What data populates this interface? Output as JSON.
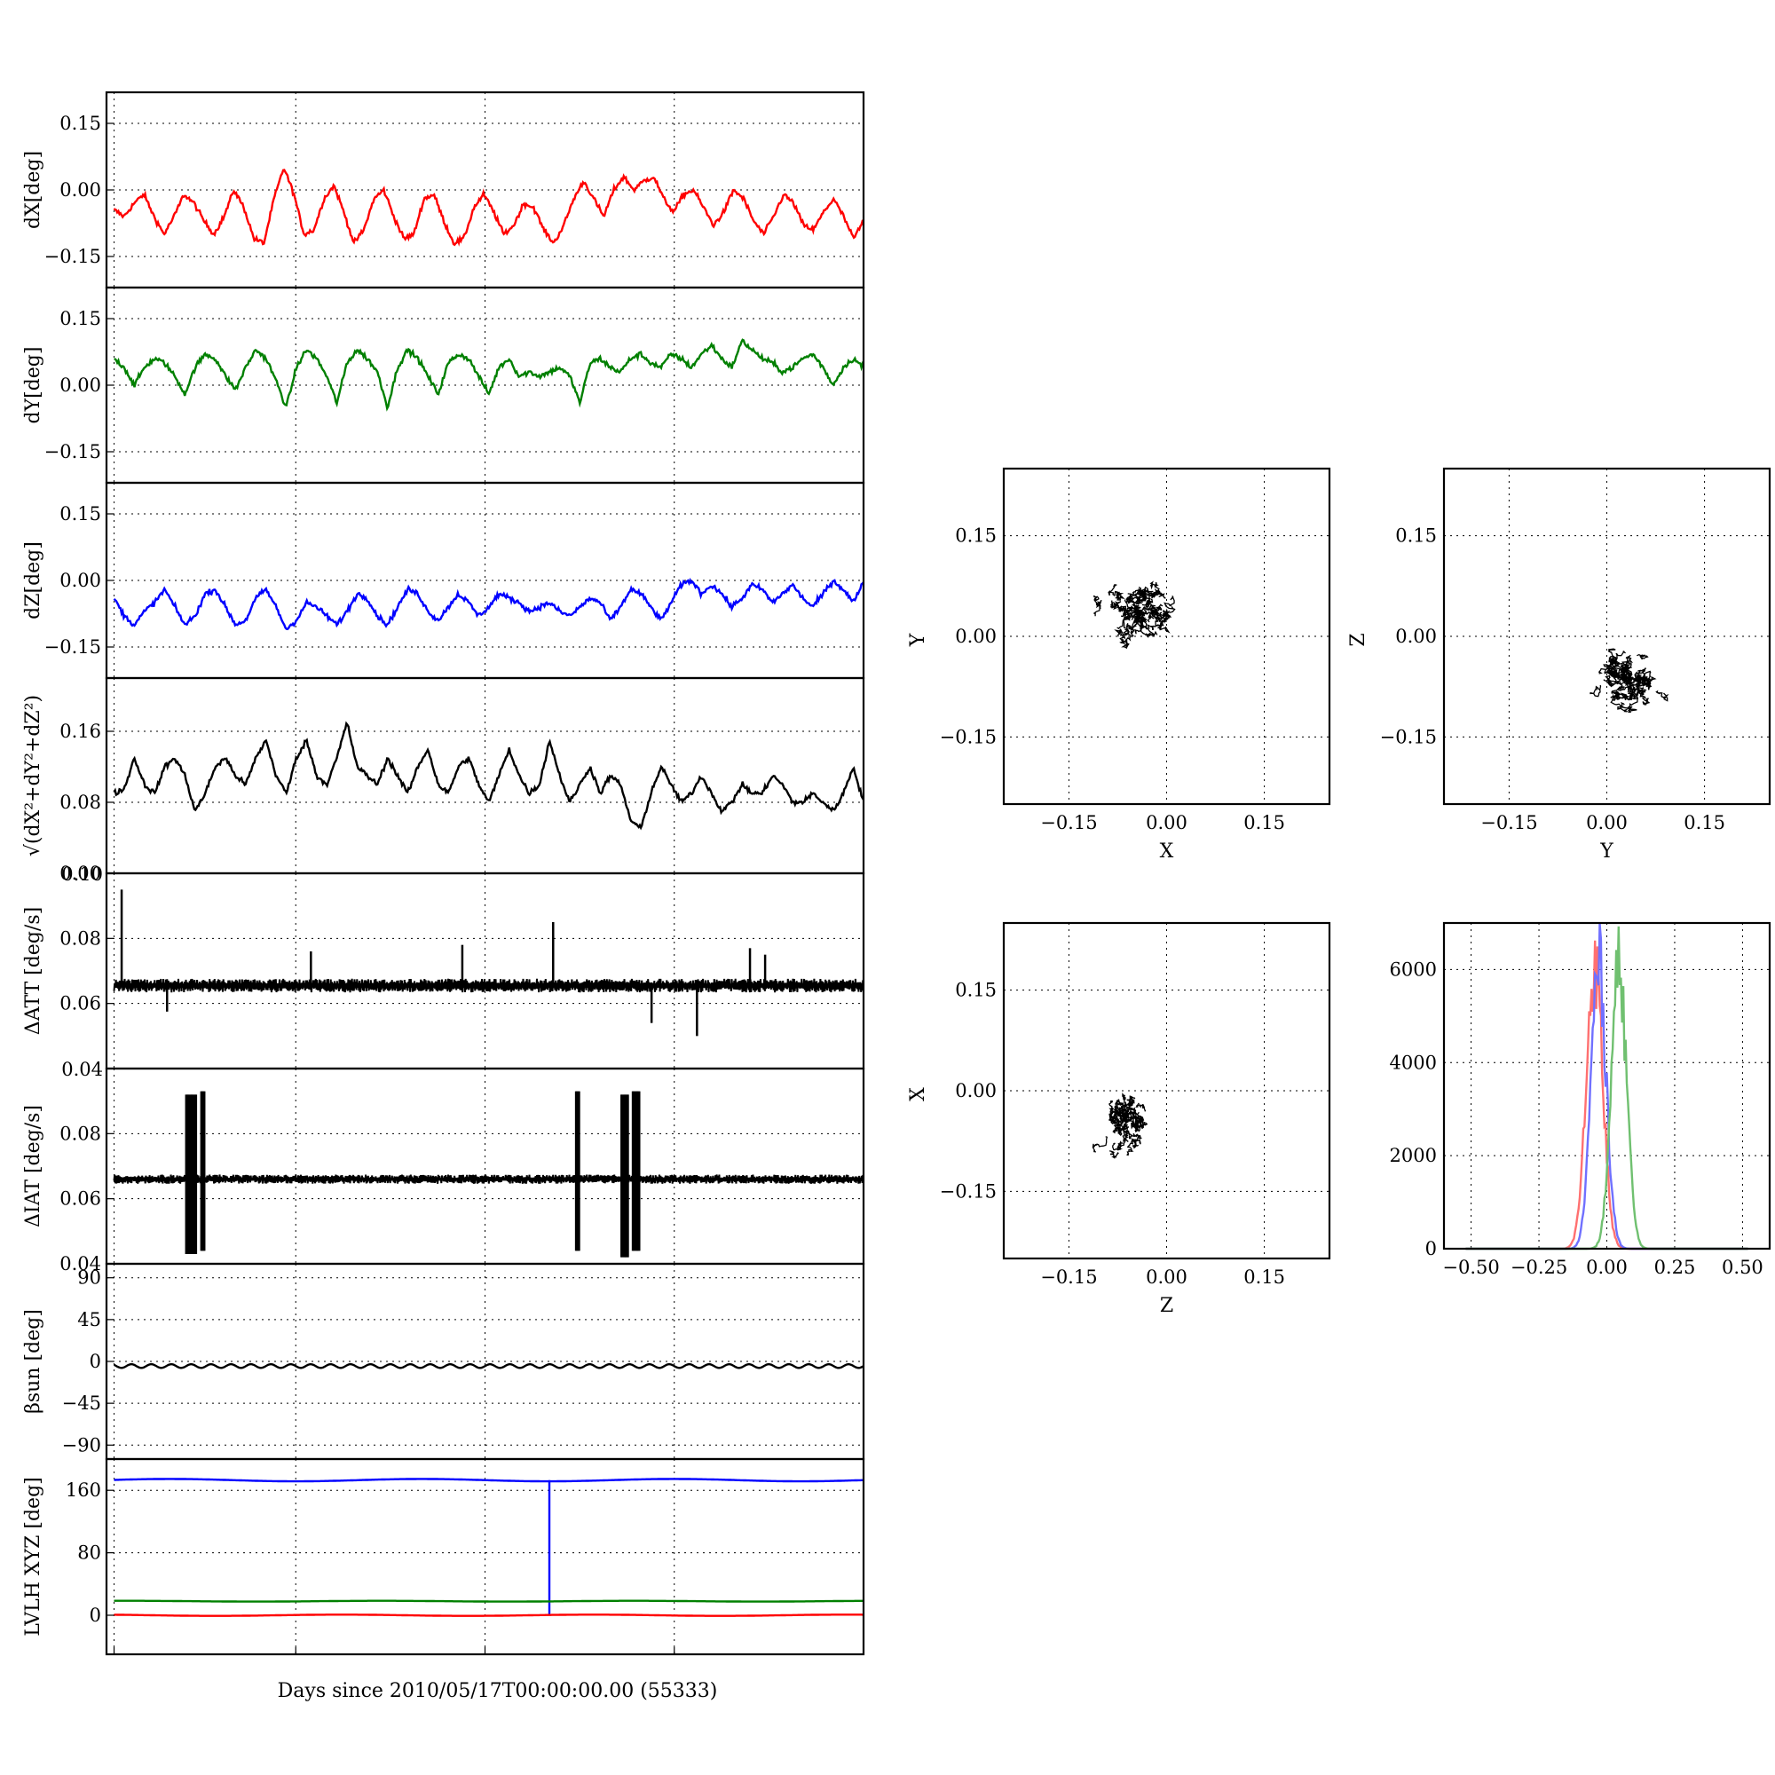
{
  "chart_data": [
    {
      "id": "dx",
      "type": "line",
      "ylabel": "dX[deg]",
      "ylim": [
        -0.22,
        0.22
      ],
      "yticks": [
        0.15,
        0.0,
        -0.15
      ],
      "ytick_labels": [
        "0.15",
        "0.00",
        "−0.15"
      ],
      "series": [
        {
          "color": "#ff0000",
          "values": [
            -0.045,
            -0.06,
            -0.03,
            -0.01,
            -0.06,
            -0.1,
            -0.06,
            -0.01,
            -0.03,
            -0.07,
            -0.1,
            -0.06,
            0.0,
            -0.04,
            -0.11,
            -0.12,
            -0.02,
            0.05,
            -0.01,
            -0.1,
            -0.09,
            -0.02,
            0.01,
            -0.05,
            -0.12,
            -0.09,
            -0.02,
            0.0,
            -0.06,
            -0.11,
            -0.1,
            -0.02,
            -0.01,
            -0.07,
            -0.12,
            -0.11,
            -0.04,
            -0.01,
            -0.05,
            -0.1,
            -0.08,
            -0.03,
            -0.04,
            -0.09,
            -0.12,
            -0.08,
            -0.02,
            0.02,
            -0.02,
            -0.06,
            0.0,
            0.03,
            0.0,
            0.02,
            0.03,
            -0.02,
            -0.05,
            -0.01,
            0.0,
            -0.04,
            -0.08,
            -0.05,
            0.0,
            -0.02,
            -0.07,
            -0.1,
            -0.06,
            -0.01,
            -0.03,
            -0.08,
            -0.09,
            -0.05,
            -0.02,
            -0.06,
            -0.11,
            -0.07
          ]
        }
      ]
    },
    {
      "id": "dy",
      "type": "line",
      "ylabel": "dY[deg]",
      "ylim": [
        -0.22,
        0.22
      ],
      "yticks": [
        0.15,
        0.0,
        -0.15
      ],
      "ytick_labels": [
        "0.15",
        "0.00",
        "−0.15"
      ],
      "series": [
        {
          "color": "#008000",
          "values": [
            0.06,
            0.04,
            0.0,
            0.04,
            0.06,
            0.05,
            0.02,
            -0.02,
            0.04,
            0.07,
            0.06,
            0.02,
            -0.01,
            0.04,
            0.08,
            0.06,
            0.01,
            -0.05,
            0.04,
            0.08,
            0.06,
            0.02,
            -0.04,
            0.05,
            0.08,
            0.06,
            0.03,
            -0.05,
            0.04,
            0.08,
            0.06,
            0.02,
            -0.02,
            0.05,
            0.07,
            0.06,
            0.02,
            -0.02,
            0.04,
            0.06,
            0.02,
            0.03,
            0.02,
            0.03,
            0.04,
            0.02,
            -0.04,
            0.05,
            0.06,
            0.04,
            0.03,
            0.06,
            0.07,
            0.05,
            0.04,
            0.07,
            0.06,
            0.04,
            0.07,
            0.09,
            0.06,
            0.04,
            0.1,
            0.08,
            0.06,
            0.05,
            0.03,
            0.04,
            0.06,
            0.07,
            0.04,
            0.0,
            0.04,
            0.06,
            0.04
          ]
        }
      ]
    },
    {
      "id": "dz",
      "type": "line",
      "ylabel": "dZ[deg]",
      "ylim": [
        -0.22,
        0.22
      ],
      "yticks": [
        0.15,
        0.0,
        -0.15
      ],
      "ytick_labels": [
        "0.15",
        "0.00",
        "−0.15"
      ],
      "series": [
        {
          "color": "#0000ff",
          "values": [
            -0.04,
            -0.08,
            -0.1,
            -0.07,
            -0.05,
            -0.02,
            -0.06,
            -0.1,
            -0.08,
            -0.03,
            -0.02,
            -0.06,
            -0.1,
            -0.09,
            -0.04,
            -0.02,
            -0.06,
            -0.11,
            -0.09,
            -0.05,
            -0.06,
            -0.08,
            -0.1,
            -0.07,
            -0.03,
            -0.04,
            -0.08,
            -0.1,
            -0.06,
            -0.02,
            -0.03,
            -0.07,
            -0.09,
            -0.06,
            -0.03,
            -0.05,
            -0.08,
            -0.06,
            -0.03,
            -0.04,
            -0.05,
            -0.07,
            -0.06,
            -0.05,
            -0.07,
            -0.08,
            -0.06,
            -0.04,
            -0.05,
            -0.09,
            -0.06,
            -0.02,
            -0.03,
            -0.06,
            -0.09,
            -0.05,
            -0.01,
            0.0,
            -0.03,
            -0.01,
            -0.03,
            -0.06,
            -0.04,
            -0.01,
            -0.02,
            -0.05,
            -0.03,
            -0.01,
            -0.04,
            -0.06,
            -0.03,
            0.0,
            -0.02,
            -0.05,
            0.0
          ]
        }
      ]
    },
    {
      "id": "dr",
      "type": "line",
      "ylabel": "√(dX²+dY²+dZ²)",
      "ylim": [
        0.0,
        0.22
      ],
      "yticks": [
        0.16,
        0.08,
        0.0
      ],
      "ytick_labels": [
        "0.16",
        "0.08",
        "0.00"
      ],
      "series": [
        {
          "color": "#000000",
          "values": [
            0.09,
            0.095,
            0.13,
            0.1,
            0.09,
            0.12,
            0.13,
            0.11,
            0.07,
            0.09,
            0.12,
            0.13,
            0.11,
            0.1,
            0.13,
            0.15,
            0.11,
            0.09,
            0.13,
            0.15,
            0.11,
            0.1,
            0.13,
            0.17,
            0.12,
            0.11,
            0.1,
            0.13,
            0.11,
            0.09,
            0.12,
            0.14,
            0.1,
            0.09,
            0.12,
            0.13,
            0.1,
            0.08,
            0.11,
            0.14,
            0.11,
            0.09,
            0.1,
            0.15,
            0.11,
            0.08,
            0.1,
            0.12,
            0.09,
            0.11,
            0.1,
            0.06,
            0.05,
            0.09,
            0.12,
            0.1,
            0.08,
            0.09,
            0.11,
            0.09,
            0.07,
            0.08,
            0.1,
            0.09,
            0.09,
            0.11,
            0.1,
            0.08,
            0.08,
            0.09,
            0.08,
            0.07,
            0.09,
            0.12,
            0.08
          ]
        }
      ]
    },
    {
      "id": "datt",
      "type": "line",
      "ylabel": "ΔATT [deg/s]",
      "ylim": [
        0.04,
        0.1
      ],
      "yticks": [
        0.08,
        0.06
      ],
      "ytick_labels": [
        "0.08",
        "0.06"
      ],
      "corner_labels": [
        "0.10",
        "0.04"
      ],
      "baseline": 0.0655,
      "noise": 0.0015,
      "spikes": [
        [
          0.02,
          0.095
        ],
        [
          0.08,
          0.0575
        ],
        [
          0.27,
          0.076
        ],
        [
          0.47,
          0.078
        ],
        [
          0.59,
          0.085
        ],
        [
          0.72,
          0.054
        ],
        [
          0.78,
          0.05
        ],
        [
          0.85,
          0.077
        ],
        [
          0.87,
          0.075
        ]
      ],
      "series": [
        {
          "color": "#000000"
        }
      ]
    },
    {
      "id": "diat",
      "type": "line",
      "ylabel": "ΔIAT [deg/s]",
      "ylim": [
        0.04,
        0.1
      ],
      "yticks": [
        0.08,
        0.06,
        0.04
      ],
      "ytick_labels": [
        "0.08",
        "0.06",
        "0.04"
      ],
      "baseline": 0.066,
      "noise": 0.001,
      "bursts": [
        [
          0.105,
          0.12,
          0.043,
          0.092
        ],
        [
          0.125,
          0.13,
          0.044,
          0.093
        ],
        [
          0.62,
          0.625,
          0.044,
          0.093
        ],
        [
          0.68,
          0.69,
          0.042,
          0.092
        ],
        [
          0.695,
          0.705,
          0.044,
          0.093
        ]
      ],
      "series": [
        {
          "color": "#000000"
        }
      ]
    },
    {
      "id": "beta",
      "type": "line",
      "ylabel": "βsun [deg]",
      "ylim": [
        -105,
        105
      ],
      "yticks": [
        90,
        45,
        0,
        -45,
        -90
      ],
      "ytick_labels": [
        "90",
        "45",
        "0",
        "−45",
        "−90"
      ],
      "series": [
        {
          "color": "#000000",
          "mean": -5,
          "amp": 2,
          "cycles": 38
        }
      ]
    },
    {
      "id": "lvlh",
      "type": "line",
      "ylabel": "LVLH XYZ [deg]",
      "xlabel": "Days since 2010/05/17T00:00:00.00 (55333)",
      "ylim": [
        -50,
        200
      ],
      "yticks": [
        160,
        80,
        0
      ],
      "ytick_labels": [
        "160",
        "80",
        "0"
      ],
      "series": [
        {
          "color": "#0000ff",
          "mean": 173,
          "amp": 1.5,
          "drop_at": 0.585
        },
        {
          "color": "#008000",
          "mean": 18,
          "amp": 0.5
        },
        {
          "color": "#ff0000",
          "mean": 0,
          "amp": 0.8
        }
      ]
    },
    {
      "id": "xy_scatter",
      "type": "scatter",
      "xlabel": "X",
      "ylabel": "Y",
      "xlim": [
        -0.25,
        0.25
      ],
      "ylim": [
        -0.25,
        0.25
      ],
      "xticks": [
        -0.15,
        0.0,
        0.15
      ],
      "yticks": [
        0.15,
        0.0,
        -0.15
      ],
      "xtick_labels": [
        "−0.15",
        "0.00",
        "0.15"
      ],
      "ytick_labels": [
        "0.15",
        "0.00",
        "−0.15"
      ],
      "center": [
        -0.04,
        0.04
      ],
      "spread": [
        0.1,
        0.09
      ],
      "tilt": 0.5
    },
    {
      "id": "yz_scatter",
      "type": "scatter",
      "xlabel": "Y",
      "ylabel": "Z",
      "xlim": [
        -0.25,
        0.25
      ],
      "ylim": [
        -0.25,
        0.25
      ],
      "xticks": [
        -0.15,
        0.0,
        0.15
      ],
      "yticks": [
        0.15,
        0.0,
        -0.15
      ],
      "xtick_labels": [
        "−0.15",
        "0.00",
        "0.15"
      ],
      "ytick_labels": [
        "0.15",
        "0.00",
        "−0.15"
      ],
      "center": [
        0.03,
        -0.06
      ],
      "spread": [
        0.1,
        0.08
      ],
      "tilt": 0.6
    },
    {
      "id": "zx_scatter",
      "type": "scatter",
      "xlabel": "Z",
      "ylabel": "X",
      "xlim": [
        -0.25,
        0.25
      ],
      "ylim": [
        -0.25,
        0.25
      ],
      "xticks": [
        -0.15,
        0.0,
        0.15
      ],
      "yticks": [
        0.15,
        0.0,
        -0.15
      ],
      "xtick_labels": [
        "−0.15",
        "0.00",
        "0.15"
      ],
      "ytick_labels": [
        "0.15",
        "0.00",
        "−0.15"
      ],
      "center": [
        -0.06,
        -0.05
      ],
      "spread": [
        0.065,
        0.08
      ],
      "tilt": -0.2
    },
    {
      "id": "hist",
      "type": "line",
      "xlim": [
        -0.6,
        0.6
      ],
      "ylim": [
        0,
        7000
      ],
      "xticks": [
        -0.5,
        -0.25,
        0.0,
        0.25,
        0.5
      ],
      "yticks": [
        6000,
        4000,
        2000,
        0
      ],
      "xtick_labels": [
        "−0.50",
        "−0.25",
        "0.00",
        "0.25",
        "0.50"
      ],
      "ytick_labels": [
        "6000",
        "4000",
        "2000",
        "0"
      ],
      "series": [
        {
          "color": "#ff7070",
          "mu": -0.045,
          "sigma": 0.03,
          "peak": 6100
        },
        {
          "color": "#7070ff",
          "mu": -0.03,
          "sigma": 0.028,
          "peak": 6150
        },
        {
          "color": "#70c070",
          "mu": 0.045,
          "sigma": 0.028,
          "peak": 6100
        }
      ]
    }
  ]
}
